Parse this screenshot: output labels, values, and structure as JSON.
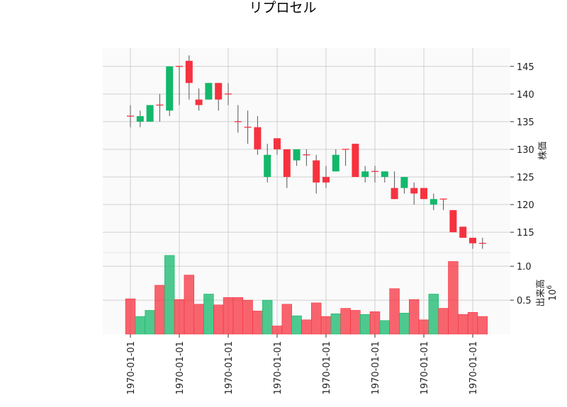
{
  "chart_data": {
    "type": "candlestick",
    "title": "リプロセル",
    "price_ylabel": "株価",
    "volume_ylabel": "出来高",
    "volume_multiplier": "10",
    "volume_multiplier_exp": "6",
    "price_ylim": [
      111.3,
      148.3
    ],
    "volume_ylim": [
      0,
      1.2
    ],
    "price_ticks": [
      115,
      120,
      125,
      130,
      135,
      140,
      145
    ],
    "volume_ticks": [
      0.5,
      1.0
    ],
    "x_tick_indices": [
      0,
      5,
      10,
      15,
      20,
      25,
      30,
      35
    ],
    "x_tick_labels": [
      "1970-01-01",
      "1970-01-01",
      "1970-01-01",
      "1970-01-01",
      "1970-01-01",
      "1970-01-01",
      "1970-01-01",
      "1970-01-01"
    ],
    "up_color": "#13b86b",
    "down_color": "#f7323f",
    "grid": true,
    "candles": [
      {
        "o": 136,
        "h": 138,
        "l": 134,
        "c": 136,
        "v": 0.52
      },
      {
        "o": 135,
        "h": 137,
        "l": 134,
        "c": 136,
        "v": 0.26
      },
      {
        "o": 135,
        "h": 138,
        "l": 135,
        "c": 138,
        "v": 0.35
      },
      {
        "o": 138,
        "h": 140,
        "l": 135,
        "c": 138,
        "v": 0.72
      },
      {
        "o": 137,
        "h": 145,
        "l": 136,
        "c": 145,
        "v": 1.16
      },
      {
        "o": 145,
        "h": 145,
        "l": 138,
        "c": 145,
        "v": 0.51
      },
      {
        "o": 146,
        "h": 147,
        "l": 139,
        "c": 142,
        "v": 0.87
      },
      {
        "o": 139,
        "h": 141,
        "l": 137,
        "c": 138,
        "v": 0.44
      },
      {
        "o": 139,
        "h": 142,
        "l": 139,
        "c": 142,
        "v": 0.59
      },
      {
        "o": 142,
        "h": 142,
        "l": 137,
        "c": 139,
        "v": 0.43
      },
      {
        "o": 140,
        "h": 142,
        "l": 138,
        "c": 140,
        "v": 0.54
      },
      {
        "o": 135,
        "h": 138,
        "l": 133,
        "c": 135,
        "v": 0.54
      },
      {
        "o": 134,
        "h": 137,
        "l": 131,
        "c": 134,
        "v": 0.5
      },
      {
        "o": 134,
        "h": 136,
        "l": 129,
        "c": 130,
        "v": 0.34
      },
      {
        "o": 125,
        "h": 131,
        "l": 124,
        "c": 129,
        "v": 0.5
      },
      {
        "o": 132,
        "h": 132,
        "l": 129,
        "c": 130,
        "v": 0.12
      },
      {
        "o": 130,
        "h": 130,
        "l": 123,
        "c": 125,
        "v": 0.44
      },
      {
        "o": 128,
        "h": 130,
        "l": 127,
        "c": 130,
        "v": 0.27
      },
      {
        "o": 129,
        "h": 130,
        "l": 127,
        "c": 129,
        "v": 0.21
      },
      {
        "o": 128,
        "h": 129,
        "l": 122,
        "c": 124,
        "v": 0.46
      },
      {
        "o": 125,
        "h": 127,
        "l": 123,
        "c": 124,
        "v": 0.26
      },
      {
        "o": 126,
        "h": 130,
        "l": 126,
        "c": 129,
        "v": 0.3
      },
      {
        "o": 130,
        "h": 130,
        "l": 127,
        "c": 130,
        "v": 0.38
      },
      {
        "o": 131,
        "h": 131,
        "l": 125,
        "c": 125,
        "v": 0.35
      },
      {
        "o": 125,
        "h": 127,
        "l": 124,
        "c": 126,
        "v": 0.29
      },
      {
        "o": 126,
        "h": 127,
        "l": 124,
        "c": 126,
        "v": 0.33
      },
      {
        "o": 125,
        "h": 126,
        "l": 124,
        "c": 126,
        "v": 0.2
      },
      {
        "o": 123,
        "h": 126,
        "l": 121,
        "c": 121,
        "v": 0.67
      },
      {
        "o": 123,
        "h": 125,
        "l": 122,
        "c": 125,
        "v": 0.31
      },
      {
        "o": 123,
        "h": 124,
        "l": 120,
        "c": 122,
        "v": 0.51
      },
      {
        "o": 123,
        "h": 123,
        "l": 121,
        "c": 121,
        "v": 0.21
      },
      {
        "o": 120,
        "h": 122,
        "l": 119,
        "c": 121,
        "v": 0.59
      },
      {
        "o": 121,
        "h": 121,
        "l": 119,
        "c": 121,
        "v": 0.38
      },
      {
        "o": 119,
        "h": 119,
        "l": 115,
        "c": 115,
        "v": 1.07
      },
      {
        "o": 116,
        "h": 116,
        "l": 114,
        "c": 114,
        "v": 0.29
      },
      {
        "o": 114,
        "h": 114,
        "l": 112,
        "c": 113,
        "v": 0.32
      },
      {
        "o": 113,
        "h": 114,
        "l": 112,
        "c": 113,
        "v": 0.26
      }
    ]
  }
}
